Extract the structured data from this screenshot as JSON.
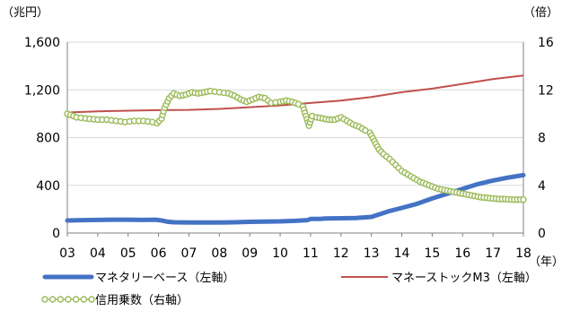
{
  "chart_data": {
    "type": "line",
    "units": {
      "left": "（兆円）",
      "right": "（倍）",
      "x": "（年）"
    },
    "x_tick_labels": [
      "03",
      "04",
      "05",
      "06",
      "07",
      "08",
      "09",
      "10",
      "11",
      "12",
      "13",
      "14",
      "15",
      "16",
      "17",
      "18"
    ],
    "x_range": [
      2003,
      2018
    ],
    "y_left": {
      "range": [
        0,
        1600
      ],
      "ticks": [
        0,
        400,
        800,
        1200,
        1600
      ],
      "tick_labels": [
        "0",
        "400",
        "800",
        "1,200",
        "1,600"
      ]
    },
    "y_right": {
      "range": [
        0,
        16
      ],
      "ticks": [
        0,
        4,
        8,
        12,
        16
      ],
      "tick_labels": [
        "0",
        "4",
        "8",
        "12",
        "16"
      ]
    },
    "grid": "horizontal",
    "legend": "bottom",
    "series": [
      {
        "name": "マネタリーベース（左軸）",
        "axis": "left",
        "color": "#4472C4",
        "style": "thick-line",
        "x": [
          2003.0,
          2003.5,
          2004.0,
          2004.5,
          2005.0,
          2005.5,
          2005.9,
          2006.1,
          2006.3,
          2006.5,
          2007.0,
          2007.5,
          2008.0,
          2008.5,
          2009.0,
          2009.5,
          2010.0,
          2010.5,
          2010.9,
          2011.0,
          2011.3,
          2011.5,
          2012.0,
          2012.5,
          2013.0,
          2013.3,
          2013.6,
          2014.0,
          2014.5,
          2015.0,
          2015.5,
          2016.0,
          2016.5,
          2017.0,
          2017.3,
          2017.5,
          2018.0
        ],
        "y": [
          105,
          108,
          110,
          112,
          112,
          110,
          112,
          105,
          95,
          90,
          88,
          88,
          88,
          90,
          94,
          96,
          98,
          102,
          108,
          118,
          118,
          122,
          124,
          126,
          135,
          160,
          185,
          210,
          245,
          290,
          330,
          370,
          410,
          440,
          455,
          465,
          485
        ]
      },
      {
        "name": "マネーストックM3（左軸）",
        "axis": "left",
        "color": "#C0504D",
        "style": "line",
        "x": [
          2003,
          2004,
          2005,
          2006,
          2007,
          2008,
          2009,
          2010,
          2011,
          2012,
          2013,
          2014,
          2015,
          2016,
          2017,
          2018
        ],
        "y": [
          1010,
          1020,
          1025,
          1030,
          1032,
          1040,
          1055,
          1070,
          1090,
          1110,
          1140,
          1180,
          1210,
          1250,
          1290,
          1320
        ]
      },
      {
        "name": "信用乗数（右軸）",
        "axis": "right",
        "color": "#9BBB59",
        "style": "line-with-hollow-markers",
        "x": [
          2003.0,
          2003.3,
          2003.6,
          2004.0,
          2004.3,
          2004.6,
          2004.9,
          2005.2,
          2005.5,
          2005.8,
          2005.95,
          2006.1,
          2006.2,
          2006.35,
          2006.5,
          2006.7,
          2006.9,
          2007.1,
          2007.3,
          2007.5,
          2007.7,
          2008.0,
          2008.3,
          2008.5,
          2008.7,
          2008.9,
          2009.1,
          2009.3,
          2009.5,
          2009.7,
          2010.0,
          2010.2,
          2010.4,
          2010.6,
          2010.75,
          2010.85,
          2010.95,
          2011.05,
          2011.2,
          2011.4,
          2011.6,
          2011.8,
          2012.0,
          2012.2,
          2012.4,
          2012.6,
          2012.8,
          2012.95,
          2013.1,
          2013.25,
          2013.4,
          2013.6,
          2013.8,
          2014.0,
          2014.2,
          2014.4,
          2014.6,
          2014.8,
          2015.0,
          2015.2,
          2015.4,
          2015.6,
          2015.8,
          2016.0,
          2016.2,
          2016.4,
          2016.6,
          2016.8,
          2017.0,
          2017.2,
          2017.4,
          2017.6,
          2017.8,
          2018.0
        ],
        "y": [
          10.0,
          9.7,
          9.6,
          9.5,
          9.5,
          9.4,
          9.3,
          9.4,
          9.4,
          9.3,
          9.2,
          9.6,
          10.5,
          11.3,
          11.7,
          11.5,
          11.6,
          11.8,
          11.7,
          11.8,
          11.9,
          11.8,
          11.7,
          11.5,
          11.2,
          11.0,
          11.2,
          11.4,
          11.3,
          10.9,
          11.0,
          11.1,
          11.0,
          10.8,
          10.6,
          9.8,
          9.0,
          9.8,
          9.7,
          9.6,
          9.5,
          9.5,
          9.7,
          9.4,
          9.1,
          8.9,
          8.6,
          8.4,
          7.7,
          7.0,
          6.6,
          6.2,
          5.7,
          5.2,
          4.9,
          4.6,
          4.3,
          4.1,
          3.9,
          3.7,
          3.6,
          3.5,
          3.4,
          3.3,
          3.2,
          3.1,
          3.0,
          2.95,
          2.9,
          2.85,
          2.85,
          2.8,
          2.8,
          2.8
        ]
      }
    ]
  }
}
